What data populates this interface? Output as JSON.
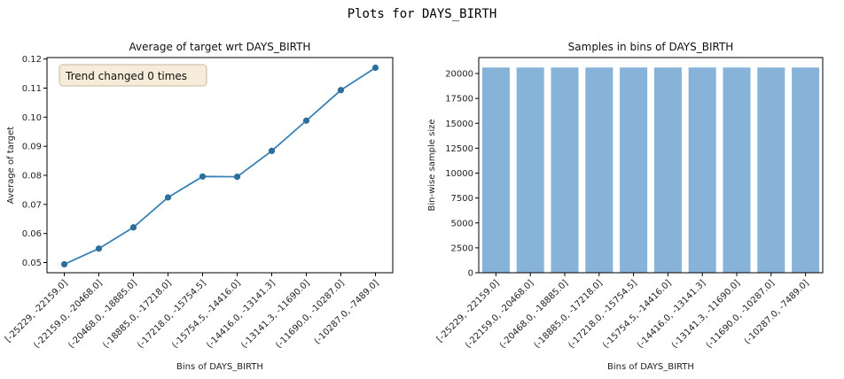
{
  "suptitle": "Plots for DAYS_BIRTH",
  "chart_data": [
    {
      "type": "line",
      "title": "Average of target wrt DAYS_BIRTH",
      "xlabel": "Bins of DAYS_BIRTH",
      "ylabel": "Average of target",
      "categories": [
        "[-25229, -22159.0]",
        "(-22159.0, -20468.0]",
        "(-20468.0, -18885.0]",
        "(-18885.0, -17218.0]",
        "(-17218.0, -15754.5]",
        "(-15754.5, -14416.0]",
        "(-14416.0, -13141.3]",
        "(-13141.3, -11690.0]",
        "(-11690.0, -10287.0]",
        "(-10287.0, -7489.0]"
      ],
      "values": [
        0.0494,
        0.0548,
        0.0621,
        0.0724,
        0.0796,
        0.0795,
        0.0884,
        0.0988,
        0.1093,
        0.117
      ],
      "ylim": [
        0.0465,
        0.1205
      ],
      "yticks": [
        "0.05",
        "0.06",
        "0.07",
        "0.08",
        "0.09",
        "0.10",
        "0.11",
        "0.12"
      ],
      "annotation": "Trend changed 0 times",
      "color": "#3b82b4"
    },
    {
      "type": "bar",
      "title": "Samples in bins of DAYS_BIRTH",
      "xlabel": "Bins of DAYS_BIRTH",
      "ylabel": "Bin-wise sample size",
      "categories": [
        "[-25229, -22159.0]",
        "(-22159.0, -20468.0]",
        "(-20468.0, -18885.0]",
        "(-18885.0, -17218.0]",
        "(-17218.0, -15754.5]",
        "(-15754.5, -14416.0]",
        "(-14416.0, -13141.3]",
        "(-13141.3, -11690.0]",
        "(-11690.0, -10287.0]",
        "(-10287.0, -7489.0]"
      ],
      "values": [
        20600,
        20600,
        20600,
        20600,
        20600,
        20600,
        20600,
        20600,
        20600,
        20600
      ],
      "ylim": [
        0,
        21600
      ],
      "yticks": [
        "0",
        "2500",
        "5000",
        "7500",
        "10000",
        "12500",
        "15000",
        "17500",
        "20000"
      ],
      "color": "#87b3d8"
    }
  ]
}
